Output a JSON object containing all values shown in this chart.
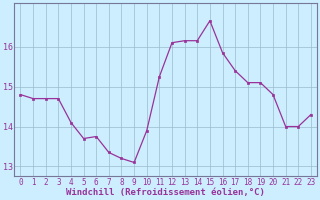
{
  "x": [
    0,
    1,
    2,
    3,
    4,
    5,
    6,
    7,
    8,
    9,
    10,
    11,
    12,
    13,
    14,
    15,
    16,
    17,
    18,
    19,
    20,
    21,
    22,
    23
  ],
  "y": [
    14.8,
    14.7,
    14.7,
    14.7,
    14.1,
    13.7,
    13.75,
    13.35,
    13.2,
    13.1,
    13.9,
    15.25,
    16.1,
    16.15,
    16.15,
    16.65,
    15.85,
    15.4,
    15.1,
    15.1,
    14.8,
    14.0,
    14.0,
    14.3
  ],
  "line_color": "#993399",
  "marker": "s",
  "marker_size": 2.0,
  "bg_color": "#cceeff",
  "grid_color": "#99bbcc",
  "xlabel": "Windchill (Refroidissement éolien,°C)",
  "xlabel_color": "#993399",
  "tick_color": "#993399",
  "ylim": [
    12.75,
    17.1
  ],
  "yticks": [
    13,
    14,
    15,
    16
  ],
  "xticks": [
    0,
    1,
    2,
    3,
    4,
    5,
    6,
    7,
    8,
    9,
    10,
    11,
    12,
    13,
    14,
    15,
    16,
    17,
    18,
    19,
    20,
    21,
    22,
    23
  ],
  "font_size": 5.5,
  "xlabel_font_size": 6.5
}
